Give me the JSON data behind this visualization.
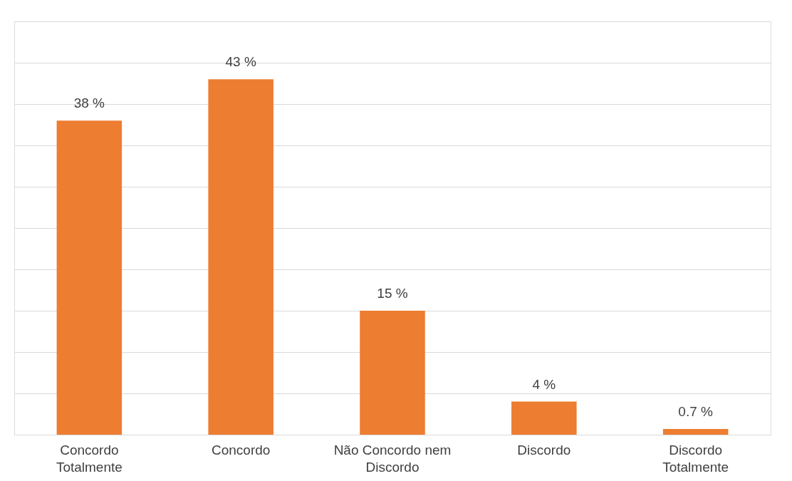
{
  "chart_data": {
    "type": "bar",
    "categories": [
      "Concordo Totalmente",
      "Concordo",
      "Não Concordo nem Discordo",
      "Discordo",
      "Discordo Totalmente"
    ],
    "values": [
      38,
      43,
      15,
      4,
      0.7
    ],
    "value_labels": [
      "38 %",
      "43 %",
      "15 %",
      "4 %",
      "0.7 %"
    ],
    "color": "#ed7d31",
    "ylim": [
      0,
      50
    ],
    "yticks": [
      {
        "value": 0,
        "label": null
      },
      {
        "value": 5,
        "label": null
      },
      {
        "value": 10,
        "label": null
      },
      {
        "value": 15,
        "label": null
      },
      {
        "value": 20,
        "label": null
      },
      {
        "value": 25,
        "label": null
      },
      {
        "value": 30,
        "label": null
      },
      {
        "value": 35,
        "label": null
      },
      {
        "value": 40,
        "label": null
      },
      {
        "value": 45,
        "label": null
      },
      {
        "value": 50,
        "label": null
      }
    ],
    "tick_labels": "x",
    "grid": "y"
  }
}
